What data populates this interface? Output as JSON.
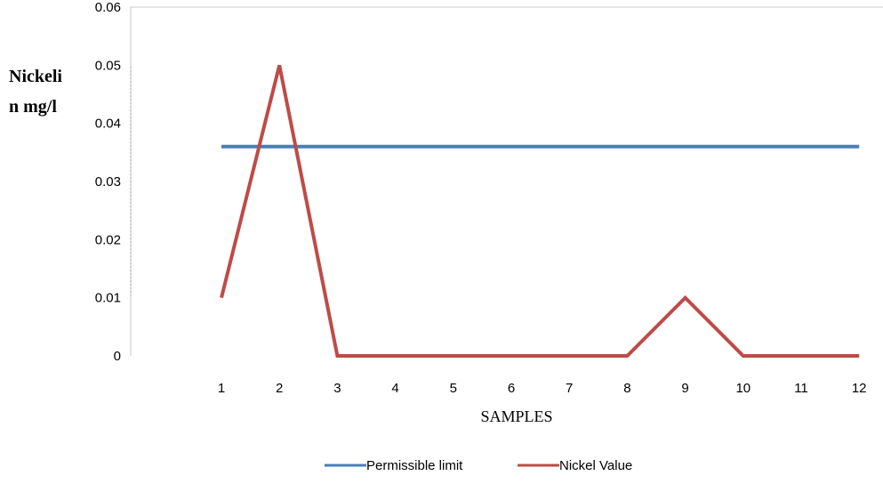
{
  "chart_data": {
    "type": "line",
    "title": "",
    "xlabel": "SAMPLES",
    "ylabel_lines": [
      "Nickeli",
      "n mg/l"
    ],
    "categories": [
      "1",
      "2",
      "3",
      "4",
      "5",
      "6",
      "7",
      "8",
      "9",
      "10",
      "11",
      "12"
    ],
    "yticks": [
      "0",
      "0.01",
      "0.02",
      "0.03",
      "0.04",
      "0.05",
      "0.06"
    ],
    "ylim": [
      0,
      0.06
    ],
    "grid": false,
    "legend_position": "bottom",
    "series": [
      {
        "name": "Permissible limit",
        "color": "#4a7ebb",
        "values": [
          0.036,
          0.036,
          0.036,
          0.036,
          0.036,
          0.036,
          0.036,
          0.036,
          0.036,
          0.036,
          0.036,
          0.036
        ]
      },
      {
        "name": "Nickel Value",
        "color": "#be4b48",
        "values": [
          0.01,
          0.05,
          0,
          0,
          0,
          0,
          0,
          0,
          0.01,
          0,
          0,
          0
        ]
      }
    ]
  }
}
